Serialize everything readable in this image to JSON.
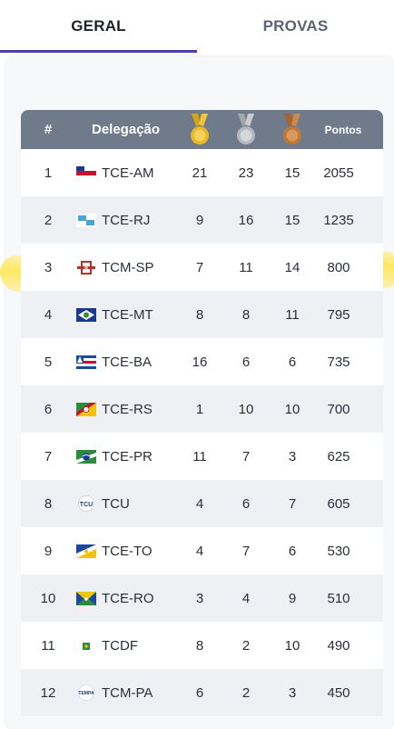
{
  "tabs": [
    {
      "label": "GERAL",
      "active": true
    },
    {
      "label": "PROVAS",
      "active": false
    }
  ],
  "table": {
    "headers": {
      "rank": "#",
      "delegation": "Delegação",
      "points": "Pontos"
    },
    "medal_icons": {
      "gold": "gold-medal-icon",
      "silver": "silver-medal-icon",
      "bronze": "bronze-medal-icon"
    },
    "highlighted_row": "TCM-SP",
    "rows": [
      {
        "rank": "1",
        "name": "TCE-AM",
        "gold": "21",
        "silver": "23",
        "bronze": "15",
        "points": "2055",
        "flag": "flag-am-icon"
      },
      {
        "rank": "2",
        "name": "TCE-RJ",
        "gold": "9",
        "silver": "16",
        "bronze": "15",
        "points": "1235",
        "flag": "flag-rj-icon"
      },
      {
        "rank": "3",
        "name": "TCM-SP",
        "gold": "7",
        "silver": "11",
        "bronze": "14",
        "points": "800",
        "flag": "flag-sp-icon"
      },
      {
        "rank": "4",
        "name": "TCE-MT",
        "gold": "8",
        "silver": "8",
        "bronze": "11",
        "points": "795",
        "flag": "flag-mt-icon"
      },
      {
        "rank": "5",
        "name": "TCE-BA",
        "gold": "16",
        "silver": "6",
        "bronze": "6",
        "points": "735",
        "flag": "flag-ba-icon"
      },
      {
        "rank": "6",
        "name": "TCE-RS",
        "gold": "1",
        "silver": "10",
        "bronze": "10",
        "points": "700",
        "flag": "flag-rs-icon"
      },
      {
        "rank": "7",
        "name": "TCE-PR",
        "gold": "11",
        "silver": "7",
        "bronze": "3",
        "points": "625",
        "flag": "flag-pr-icon"
      },
      {
        "rank": "8",
        "name": "TCU",
        "gold": "4",
        "silver": "6",
        "bronze": "7",
        "points": "605",
        "flag": "tcu-logo-icon",
        "logo_text": "TCU"
      },
      {
        "rank": "9",
        "name": "TCE-TO",
        "gold": "4",
        "silver": "7",
        "bronze": "6",
        "points": "530",
        "flag": "flag-to-icon"
      },
      {
        "rank": "10",
        "name": "TCE-RO",
        "gold": "3",
        "silver": "4",
        "bronze": "9",
        "points": "510",
        "flag": "flag-ro-icon"
      },
      {
        "rank": "11",
        "name": "TCDF",
        "gold": "8",
        "silver": "2",
        "bronze": "10",
        "points": "490",
        "flag": "tcdf-logo-icon"
      },
      {
        "rank": "12",
        "name": "TCM-PA",
        "gold": "6",
        "silver": "2",
        "bronze": "3",
        "points": "450",
        "flag": "tcm-pa-logo-icon",
        "logo_text": "TEMPA"
      }
    ]
  },
  "colors": {
    "header_bg": "#6f7b8b",
    "tab_indicator": "#4b3fb0",
    "gold": "#e8b923",
    "silver": "#b5b8bd",
    "bronze": "#c07838",
    "highlight": "#ffe45a"
  }
}
